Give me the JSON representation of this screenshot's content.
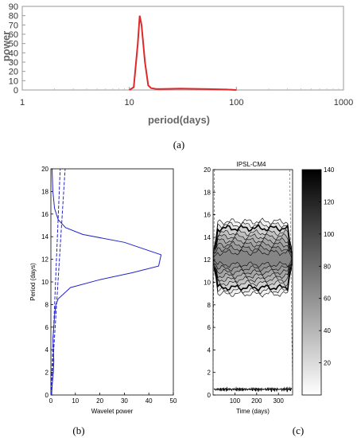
{
  "panel_labels": [
    "(a)",
    "(b)",
    "(c)"
  ],
  "chart_data": [
    {
      "panel": "(a)",
      "type": "line",
      "xlabel": "period(days)",
      "ylabel": "power",
      "xscale": "log",
      "xlim": [
        1,
        1000
      ],
      "ylim": [
        0,
        90
      ],
      "xticks": [
        "1",
        "10",
        "100",
        "1000"
      ],
      "yticks": [
        "0",
        "10",
        "20",
        "30",
        "40",
        "50",
        "60",
        "70",
        "80",
        "90"
      ],
      "line_color": "#e0282a",
      "series": [
        {
          "x": [
            10,
            11,
            12,
            12.5,
            13,
            14,
            15,
            16,
            18,
            20,
            30,
            50,
            80,
            100
          ],
          "y": [
            0,
            3,
            50,
            80,
            70,
            30,
            5,
            2,
            1,
            1,
            1.5,
            1,
            0.5,
            0
          ]
        }
      ]
    },
    {
      "panel": "(b)",
      "type": "line",
      "xlabel": "Wavelet power",
      "ylabel": "Period (days)",
      "xlim": [
        0,
        50
      ],
      "ylim": [
        0,
        20
      ],
      "xticks": [
        "0",
        "10",
        "20",
        "30",
        "40",
        "50"
      ],
      "yticks": [
        "0",
        "2",
        "4",
        "6",
        "8",
        "10",
        "12",
        "14",
        "16",
        "18",
        "20"
      ],
      "line_color": "#2222cc",
      "series": [
        {
          "style": "solid",
          "points": [
            [
              0.3,
              0
            ],
            [
              0.6,
              1
            ],
            [
              1,
              2
            ],
            [
              1.2,
              3
            ],
            [
              1,
              4
            ],
            [
              0.8,
              5
            ],
            [
              1.2,
              6
            ],
            [
              1.5,
              7
            ],
            [
              2,
              8
            ],
            [
              3,
              8.5
            ],
            [
              8,
              9.5
            ],
            [
              20,
              10.2
            ],
            [
              33,
              10.8
            ],
            [
              44,
              11.4
            ],
            [
              45,
              12.4
            ],
            [
              30,
              13.5
            ],
            [
              13,
              14.2
            ],
            [
              6,
              14.8
            ],
            [
              3,
              15.5
            ],
            [
              1.5,
              16.5
            ],
            [
              0.8,
              18
            ],
            [
              0.5,
              20
            ]
          ]
        },
        {
          "style": "dashed",
          "points": [
            [
              0,
              0
            ],
            [
              3.8,
              20
            ]
          ]
        },
        {
          "style": "dashed",
          "points": [
            [
              0,
              0
            ],
            [
              5.8,
              20
            ]
          ]
        }
      ]
    },
    {
      "panel": "(c)",
      "type": "heatmap",
      "title": "IPSL-CM4",
      "xlabel": "Time (days)",
      "ylabel": "",
      "xlim": [
        0,
        365
      ],
      "ylim": [
        0,
        20
      ],
      "xticks": [
        "100",
        "200",
        "300"
      ],
      "yticks": [
        "0",
        "2",
        "4",
        "6",
        "8",
        "10",
        "12",
        "14",
        "16",
        "18",
        "20"
      ],
      "colorbar": {
        "range": [
          0,
          140
        ],
        "ticks": [
          "20",
          "40",
          "60",
          "80",
          "100",
          "120",
          "140"
        ]
      }
    }
  ]
}
